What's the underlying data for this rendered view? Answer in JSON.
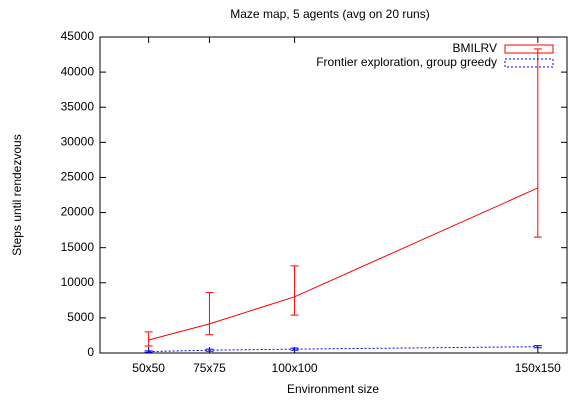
{
  "chart_data": {
    "type": "errorline",
    "title": "Maze map, 5 agents (avg on 20 runs)",
    "xlabel": "Environment size",
    "ylabel": "Steps until rendezvous",
    "x": [
      2500,
      5625,
      10000,
      22500
    ],
    "xlim": [
      0,
      24000
    ],
    "xticks": [
      {
        "value": 2500,
        "label": "50x50"
      },
      {
        "value": 5625,
        "label": "75x75"
      },
      {
        "value": 10000,
        "label": "100x100"
      },
      {
        "value": 22500,
        "label": "150x150"
      }
    ],
    "ylim": [
      0,
      45000
    ],
    "yticks": [
      0,
      5000,
      10000,
      15000,
      20000,
      25000,
      30000,
      35000,
      40000,
      45000
    ],
    "legend": "top-right",
    "series": [
      {
        "name": "BMILRV",
        "color": "#ff0000",
        "dashed": false,
        "values": [
          1850,
          4150,
          8000,
          23500
        ],
        "low": [
          1000,
          2600,
          5400,
          16500
        ],
        "high": [
          3000,
          8600,
          12400,
          43300
        ]
      },
      {
        "name": "Frontier exploration, group greedy",
        "color": "#0000ff",
        "dashed": true,
        "values": [
          200,
          400,
          550,
          900
        ],
        "low": [
          100,
          250,
          400,
          750
        ],
        "high": [
          300,
          550,
          700,
          1050
        ]
      }
    ]
  }
}
